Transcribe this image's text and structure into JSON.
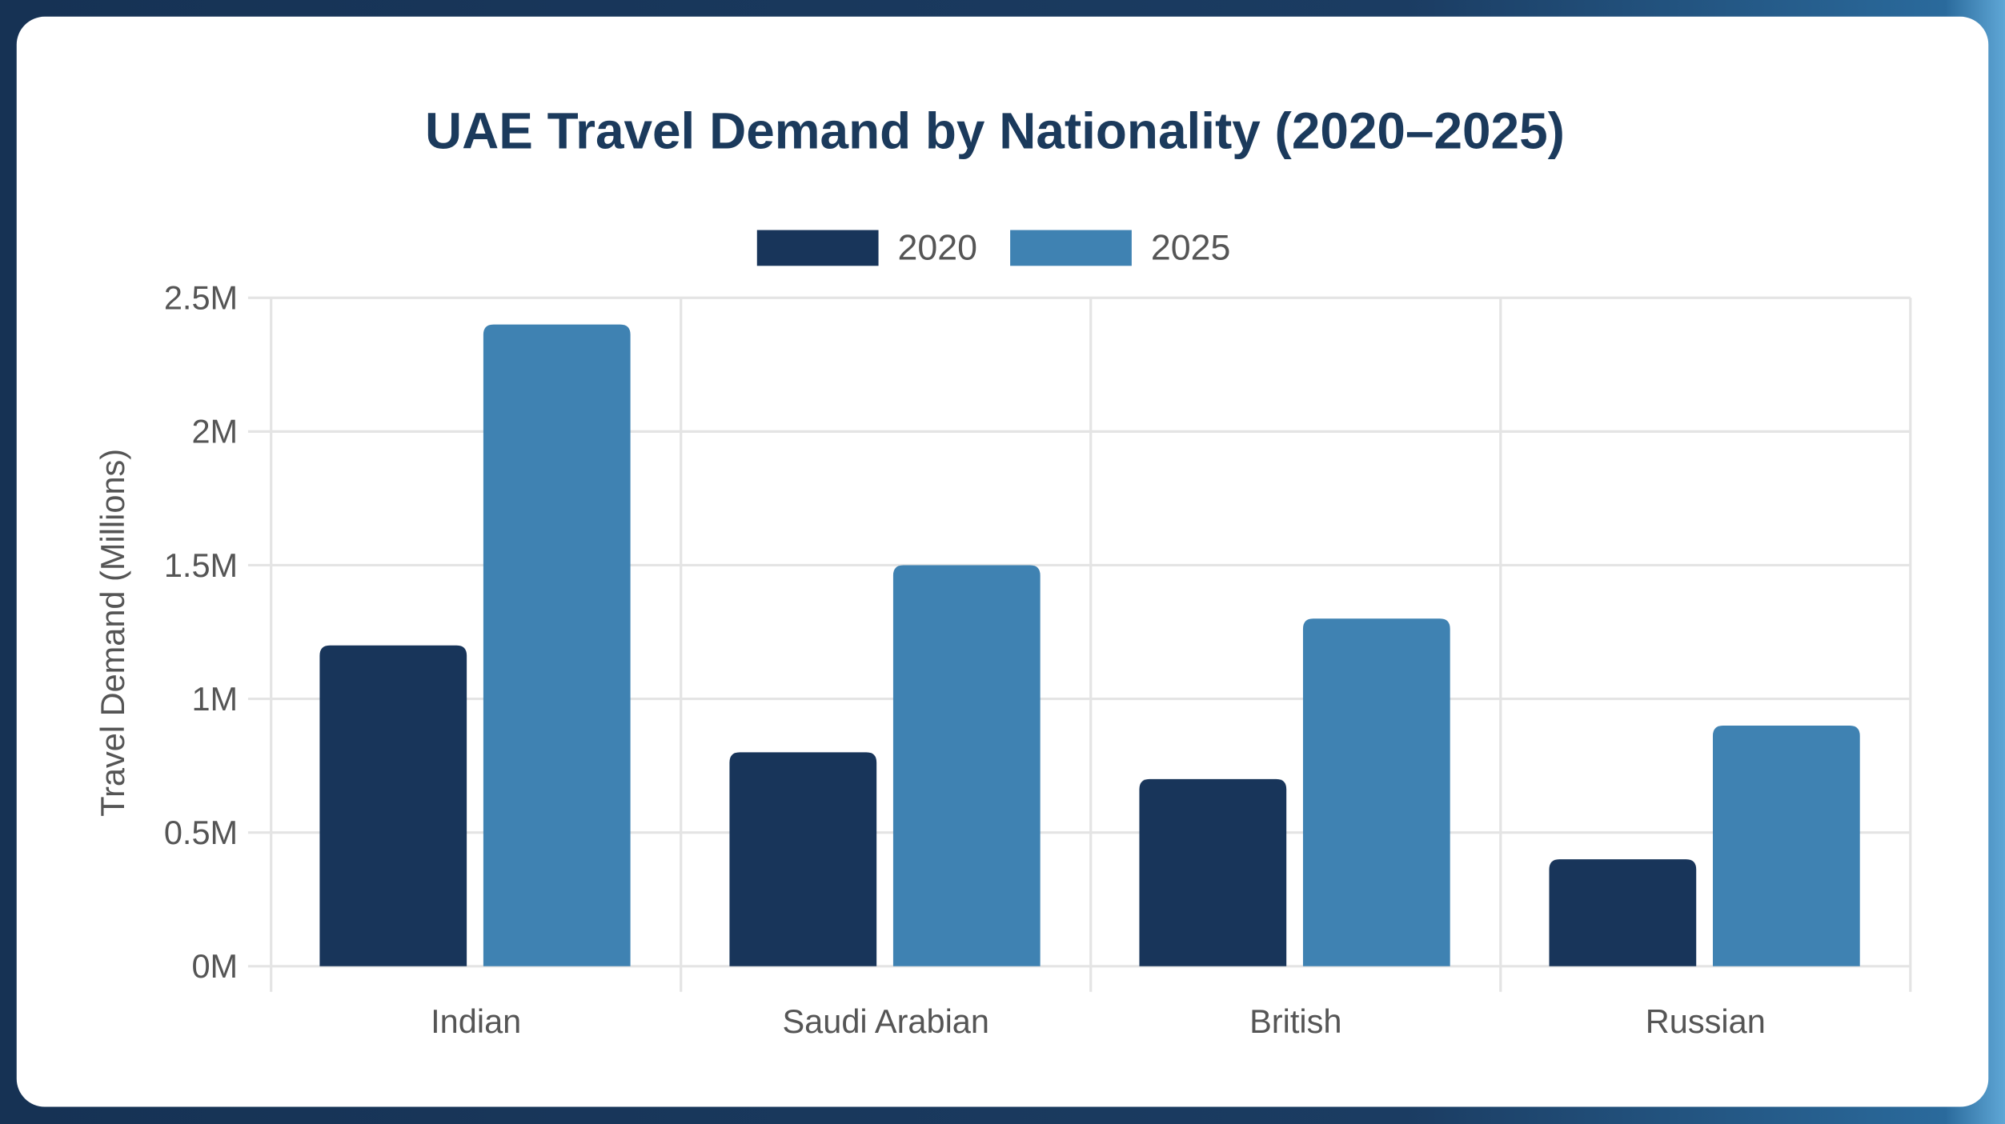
{
  "chart_data": {
    "type": "bar",
    "title": "UAE Travel Demand by Nationality (2020–2025)",
    "xlabel": "",
    "ylabel": "Travel Demand (Millions)",
    "categories": [
      "Indian",
      "Saudi Arabian",
      "British",
      "Russian"
    ],
    "series": [
      {
        "name": "2020",
        "values": [
          1.2,
          0.8,
          0.7,
          0.4
        ],
        "color": "#18355a"
      },
      {
        "name": "2025",
        "values": [
          2.4,
          1.5,
          1.3,
          0.9
        ],
        "color": "#3f82b2"
      }
    ],
    "yticks": [
      "0M",
      "0.5M",
      "1M",
      "1.5M",
      "2M",
      "2.5M"
    ],
    "ylim": [
      0,
      2.5
    ],
    "grid": true,
    "legend_position": "top"
  }
}
